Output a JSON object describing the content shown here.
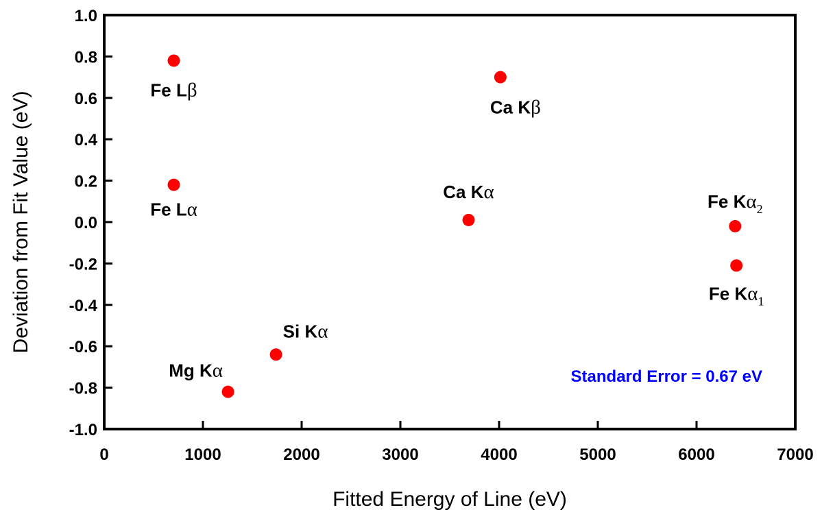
{
  "chart_data": {
    "type": "scatter",
    "xlabel": "Fitted Energy of Line (eV)",
    "ylabel": "Deviation from Fit Value (eV)",
    "xlim": [
      0,
      7000
    ],
    "ylim": [
      -1.0,
      1.0
    ],
    "x_ticks": [
      0,
      1000,
      2000,
      3000,
      4000,
      5000,
      6000,
      7000
    ],
    "x_tick_labels": [
      "0",
      "1000",
      "2000",
      "3000",
      "4000",
      "5000",
      "6000",
      "7000"
    ],
    "y_ticks": [
      1.0,
      0.8,
      0.6,
      0.4,
      0.2,
      0.0,
      -0.2,
      -0.4,
      -0.6,
      -0.8,
      -1.0
    ],
    "y_tick_labels": [
      "1.0",
      "0.8",
      "0.6",
      "0.4",
      "0.2",
      "0.0",
      "-0.2",
      "-0.4",
      "-0.6",
      "-0.8",
      "-1.0"
    ],
    "grid": false,
    "marker_color": "#ff0000",
    "points": [
      {
        "label": "Fe L",
        "greek": "β",
        "sub": "",
        "x": 705,
        "y": 0.78
      },
      {
        "label": "Fe L",
        "greek": "α",
        "sub": "",
        "x": 705,
        "y": 0.18
      },
      {
        "label": "Mg K",
        "greek": "α",
        "sub": "",
        "x": 1254,
        "y": -0.82
      },
      {
        "label": "Si K",
        "greek": "α",
        "sub": "",
        "x": 1740,
        "y": -0.64
      },
      {
        "label": "Ca K",
        "greek": "α",
        "sub": "",
        "x": 3691,
        "y": 0.01
      },
      {
        "label": "Ca K",
        "greek": "β",
        "sub": "",
        "x": 4013,
        "y": 0.7
      },
      {
        "label": "Fe K",
        "greek": "α",
        "sub": "2",
        "x": 6391,
        "y": -0.02
      },
      {
        "label": "Fe K",
        "greek": "α",
        "sub": "1",
        "x": 6404,
        "y": -0.21
      }
    ],
    "annotations": [
      {
        "text": "Standard Error = 0.67 eV",
        "color": "#0000ff",
        "position": "bottom-right"
      }
    ]
  }
}
